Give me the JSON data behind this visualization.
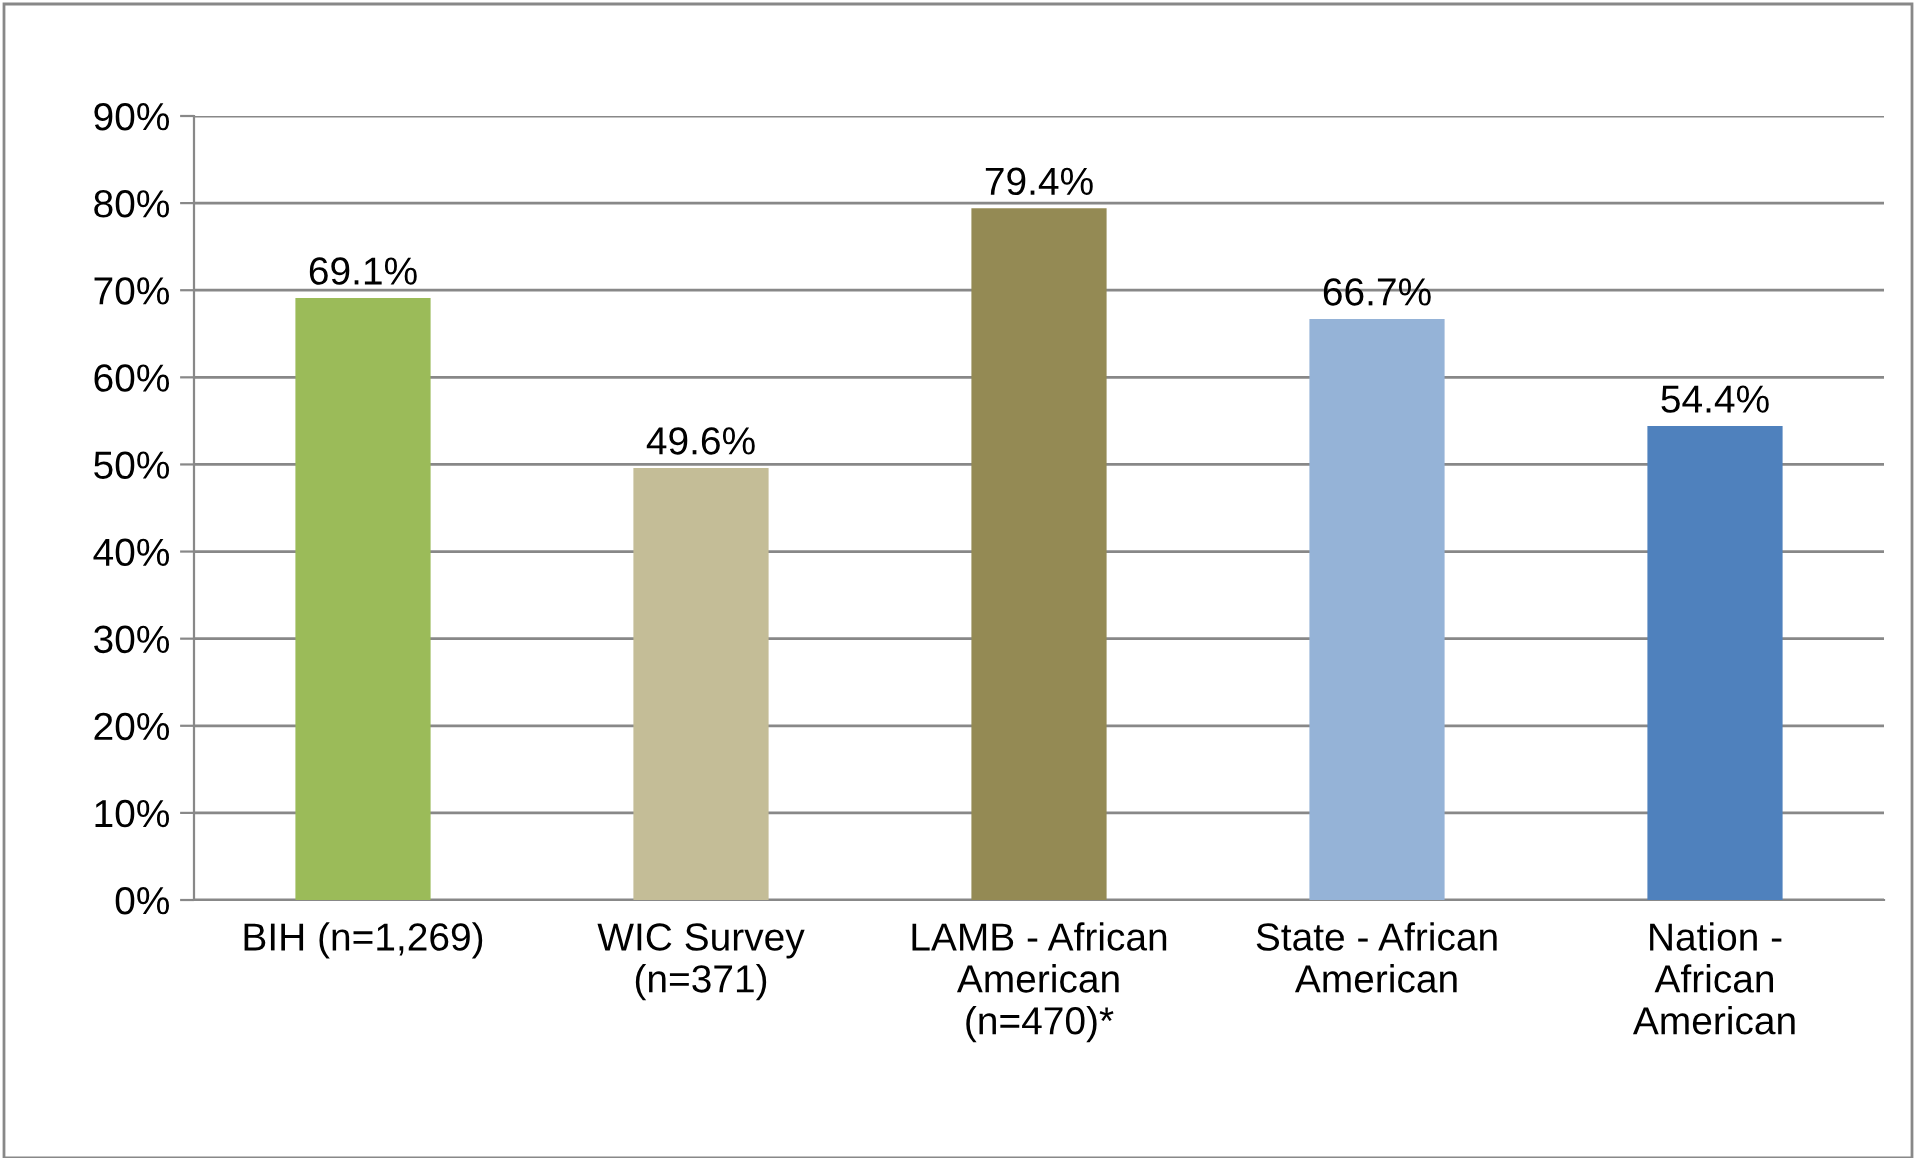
{
  "chart_data": {
    "type": "bar",
    "categories": [
      "BIH (n=1,269)",
      "WIC Survey\n(n=371)",
      "LAMB - African\nAmerican\n(n=470)*",
      "State - African\nAmerican",
      "Nation -\nAfrican\nAmerican"
    ],
    "values": [
      69.1,
      49.6,
      79.4,
      66.7,
      54.4
    ],
    "colors": [
      "#9bbb59",
      "#c4bd97",
      "#948a54",
      "#95b3d7",
      "#4f81bd"
    ],
    "value_labels": [
      "69.1%",
      "49.6%",
      "79.4%",
      "66.7%",
      "54.4%"
    ],
    "ylim": [
      0,
      90
    ],
    "yticks": [
      {
        "value": 0,
        "label": "0%"
      },
      {
        "value": 10,
        "label": "10%"
      },
      {
        "value": 20,
        "label": "20%"
      },
      {
        "value": 30,
        "label": "30%"
      },
      {
        "value": 40,
        "label": "40%"
      },
      {
        "value": 50,
        "label": "50%"
      },
      {
        "value": 60,
        "label": "60%"
      },
      {
        "value": 70,
        "label": "70%"
      },
      {
        "value": 80,
        "label": "80%"
      },
      {
        "value": 90,
        "label": "90%"
      }
    ],
    "grid": "y",
    "legend": false
  }
}
